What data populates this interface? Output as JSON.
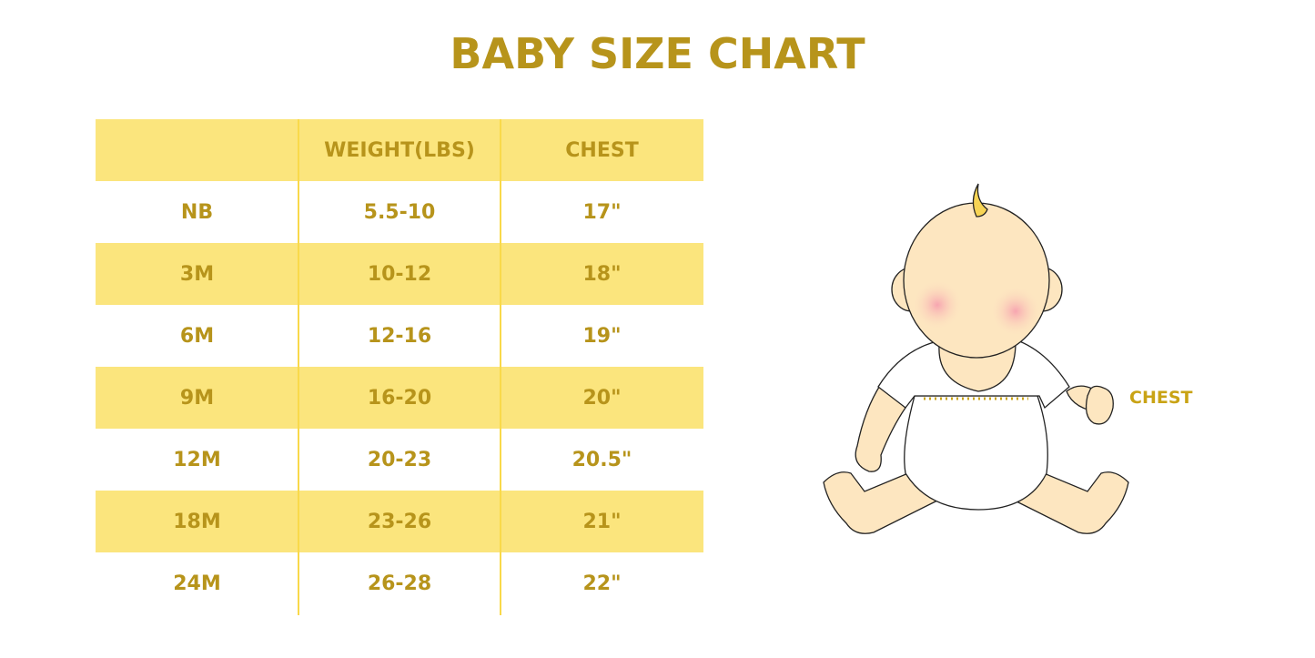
{
  "title": "BABY SIZE CHART",
  "table": {
    "headers": [
      "",
      "WEIGHT(LBS)",
      "CHEST"
    ],
    "rows": [
      [
        "NB",
        "5.5-10",
        "17\""
      ],
      [
        "3M",
        "10-12",
        "18\""
      ],
      [
        "6M",
        "12-16",
        "19\""
      ],
      [
        "9M",
        "16-20",
        "20\""
      ],
      [
        "12M",
        "20-23",
        "20.5\""
      ],
      [
        "18M",
        "23-26",
        "21\""
      ],
      [
        "24M",
        "26-28",
        "22\""
      ]
    ]
  },
  "illustration": {
    "chest_label": "CHEST"
  },
  "colors": {
    "text": "#b7941b",
    "band": "#fbe57d",
    "divider": "#f9d94a"
  }
}
